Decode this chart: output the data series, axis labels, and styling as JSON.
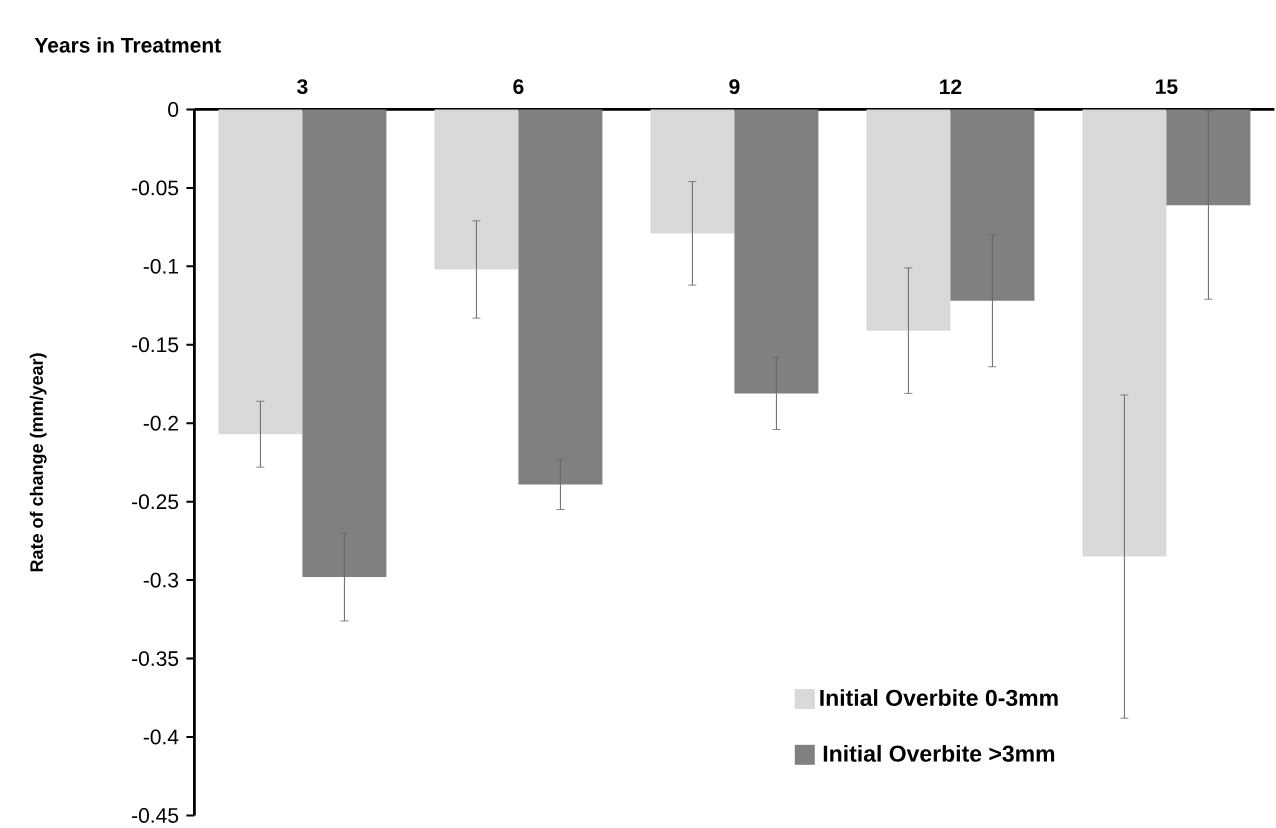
{
  "chart_data": {
    "type": "bar",
    "xlabel": "Years in Treatment",
    "ylabel": "Rate of change (mm/year)",
    "categories": [
      "3",
      "6",
      "9",
      "12",
      "15"
    ],
    "series": [
      {
        "name": "Initial Overbite 0-3mm",
        "color": "#d9d9db",
        "values": [
          -0.207,
          -0.102,
          -0.079,
          -0.141,
          -0.285
        ],
        "errors": [
          0.021,
          0.031,
          0.033,
          0.04,
          0.103
        ]
      },
      {
        "name": "Initial Overbite >3mm",
        "color": "#808083",
        "values": [
          -0.298,
          -0.239,
          -0.181,
          -0.122,
          -0.061
        ],
        "errors": [
          0.028,
          0.016,
          0.023,
          0.042,
          0.06
        ]
      }
    ],
    "ylim": [
      -0.45,
      0
    ],
    "yticks": [
      0,
      -0.05,
      -0.1,
      -0.15,
      -0.2,
      -0.25,
      -0.3,
      -0.35,
      -0.4,
      -0.45
    ],
    "grid": false,
    "legend": "bottom"
  }
}
